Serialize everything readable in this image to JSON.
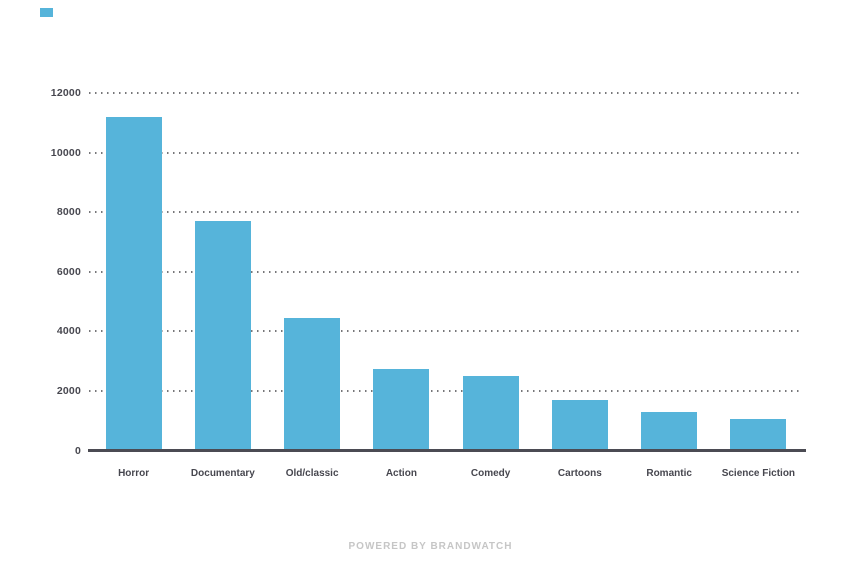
{
  "page": {
    "background": "#ffffff"
  },
  "legend": {
    "marker_color": "#56b4da",
    "position": "top-left"
  },
  "footer": {
    "powered_by": "POWERED BY BRANDWATCH"
  },
  "chart_data": {
    "type": "bar",
    "title": "",
    "xlabel": "",
    "ylabel": "",
    "categories": [
      "Horror",
      "Documentary",
      "Old/classic",
      "Action",
      "Comedy",
      "Cartoons",
      "Romantic",
      "Science Fiction"
    ],
    "values": [
      11200,
      7700,
      4450,
      2750,
      2500,
      1700,
      1300,
      1050
    ],
    "ylim": [
      0,
      12000
    ],
    "yticks": [
      0,
      2000,
      4000,
      6000,
      8000,
      10000,
      12000
    ],
    "grid": "horizontal-dotted",
    "legend_position": "top-left",
    "bar_color": "#56b4da",
    "axis_color": "#4b4b53",
    "tick_label_color": "#47474f",
    "gridline_color": "#77777a"
  }
}
